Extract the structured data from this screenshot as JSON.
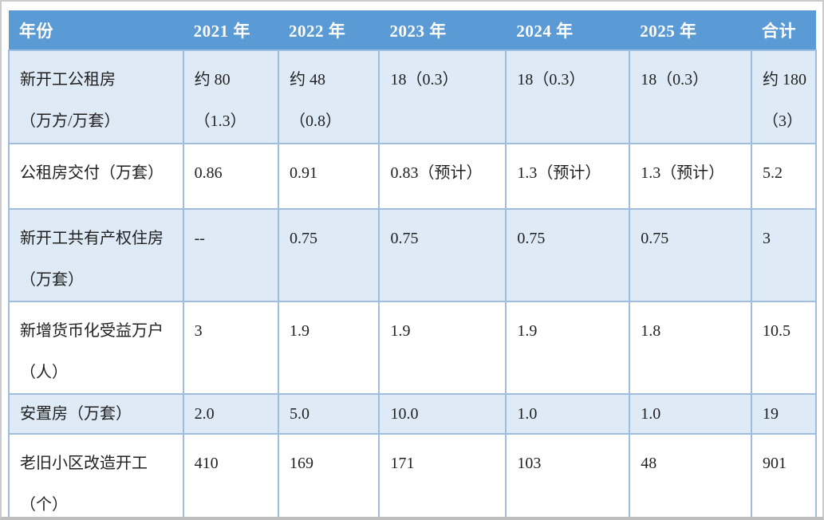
{
  "colors": {
    "header_bg": "#5B9BD5",
    "header_text": "#FFFFFF",
    "shaded_row_bg": "#DEEAF6",
    "plain_row_bg": "#FFFFFF",
    "border": "#9FBEDD",
    "body_text": "#1F1F1F"
  },
  "chart_data": {
    "type": "table",
    "columns": [
      "年份",
      "2021 年",
      "2022 年",
      "2023 年",
      "2024 年",
      "2025 年",
      "合计"
    ],
    "rows": [
      {
        "label_lines": [
          "新开工公租房",
          "（万方/万套）"
        ],
        "cells": [
          [
            "约 80",
            "（1.3）"
          ],
          [
            "约 48",
            "（0.8）"
          ],
          [
            "18（0.3）"
          ],
          [
            "18（0.3）"
          ],
          [
            "18（0.3）"
          ],
          [
            "约 180",
            "（3）"
          ]
        ]
      },
      {
        "label_lines": [
          "公租房交付（万套）"
        ],
        "cells": [
          [
            "0.86"
          ],
          [
            "0.91"
          ],
          [
            "0.83（预计）"
          ],
          [
            "1.3（预计）"
          ],
          [
            "1.3（预计）"
          ],
          [
            "5.2"
          ]
        ]
      },
      {
        "label_lines": [
          "新开工共有产权住房",
          "（万套）"
        ],
        "cells": [
          [
            "--"
          ],
          [
            "0.75"
          ],
          [
            "0.75"
          ],
          [
            "0.75"
          ],
          [
            "0.75"
          ],
          [
            "3"
          ]
        ]
      },
      {
        "label_lines": [
          "新增货币化受益万户",
          "（人）"
        ],
        "cells": [
          [
            "3"
          ],
          [
            "1.9"
          ],
          [
            "1.9"
          ],
          [
            "1.9"
          ],
          [
            "1.8"
          ],
          [
            "10.5"
          ]
        ]
      },
      {
        "label_lines": [
          "安置房（万套）"
        ],
        "cells": [
          [
            "2.0"
          ],
          [
            "5.0"
          ],
          [
            "10.0"
          ],
          [
            "1.0"
          ],
          [
            "1.0"
          ],
          [
            "19"
          ]
        ]
      },
      {
        "label_lines": [
          "老旧小区改造开工",
          "（个）"
        ],
        "cells": [
          [
            "410"
          ],
          [
            "169"
          ],
          [
            "171"
          ],
          [
            "103"
          ],
          [
            "48"
          ],
          [
            "901"
          ]
        ]
      }
    ]
  }
}
